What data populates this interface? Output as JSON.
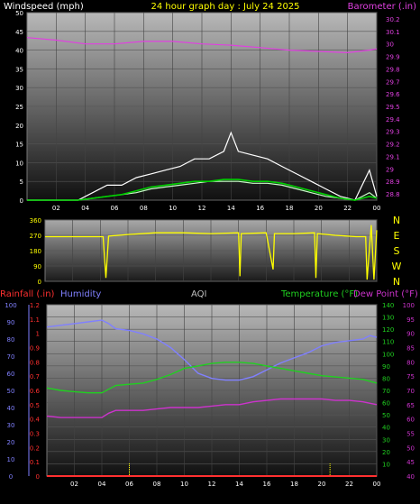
{
  "header": {
    "left_label": "Windspeed (mph)",
    "title": "24 hour graph day : July 24 2025",
    "right_label": "Barometer (.in)"
  },
  "bottom_header": {
    "rainfall_label": "Rainfall (.in)",
    "humidity_label": "Humidity",
    "aqi_label": "AQI",
    "temperature_label": "Temperature (°F)",
    "dewpoint_label": "Dew Point (°F)"
  },
  "colors": {
    "barometer": "#e040e0",
    "wind_gust": "#ffffff",
    "wind_avg": "#c8ffc8",
    "wind_mean": "#00d000",
    "direction": "#ffff00",
    "humidity": "#8080ff",
    "temperature": "#20d020",
    "dewpoint": "#cc33cc",
    "rainfall": "#ff3030",
    "aqi": "#c0c0c0",
    "title": "#ffff00",
    "left_label": "#ffffff"
  },
  "chart_data": [
    {
      "type": "line",
      "name": "wind-and-barometer",
      "x_ticks": [
        "02",
        "04",
        "06",
        "08",
        "10",
        "12",
        "14",
        "16",
        "18",
        "20",
        "22",
        "00"
      ],
      "y_ticks_left": [
        "0",
        "5",
        "10",
        "15",
        "20",
        "25",
        "30",
        "35",
        "40",
        "45",
        "50"
      ],
      "y_ticks_right": [
        "28.8",
        "28.9",
        "29",
        "29.1",
        "29.2",
        "29.3",
        "29.4",
        "29.5",
        "29.6",
        "29.7",
        "29.8",
        "29.9",
        "30",
        "30.1",
        "30.2"
      ],
      "ylim_left": [
        0,
        50
      ],
      "ylim_right": [
        28.75,
        30.25
      ],
      "xlim": [
        0,
        24
      ],
      "series": [
        {
          "key": "barometer",
          "axis": "right",
          "x": [
            0,
            2,
            4,
            6,
            8,
            10,
            12,
            14,
            16,
            18,
            20,
            22,
            23.5,
            24
          ],
          "y": [
            30.05,
            30.03,
            30.0,
            30.0,
            30.02,
            30.02,
            30.0,
            29.99,
            29.97,
            29.95,
            29.94,
            29.93,
            29.95,
            29.96
          ]
        },
        {
          "key": "wind_gust",
          "axis": "left",
          "x": [
            0,
            3.5,
            4.5,
            5.5,
            6.5,
            7.5,
            8.5,
            9.5,
            10.5,
            11.5,
            12.5,
            13.5,
            14,
            14.5,
            15.5,
            16.5,
            17.5,
            18.5,
            19.5,
            20.5,
            21.5,
            22.5,
            23.5,
            24
          ],
          "y": [
            0,
            0,
            2,
            4,
            4,
            6,
            7,
            8,
            9,
            11,
            11,
            13,
            18,
            13,
            12,
            11,
            9,
            7,
            5,
            3,
            1,
            0,
            8,
            1
          ]
        },
        {
          "key": "wind_avg",
          "axis": "left",
          "x": [
            0,
            3.5,
            4.5,
            5.5,
            6.5,
            7.5,
            8.5,
            9.5,
            10.5,
            11.5,
            12.5,
            13.5,
            14.5,
            15.5,
            16.5,
            17.5,
            18.5,
            19.5,
            20.5,
            21.5,
            22.5,
            23.5,
            24
          ],
          "y": [
            0,
            0,
            0.5,
            1,
            1.5,
            2,
            3,
            3.5,
            4,
            4.5,
            5,
            5,
            5,
            4.5,
            4.5,
            4,
            3,
            2,
            1,
            0.5,
            0,
            2,
            0.5
          ]
        },
        {
          "key": "wind_mean",
          "axis": "left",
          "x": [
            0,
            3.5,
            4.5,
            5.5,
            6.5,
            7.5,
            8.5,
            9.5,
            10.5,
            11.5,
            12.5,
            13.5,
            14.5,
            15.5,
            16.5,
            17.5,
            18.5,
            19.5,
            20.5,
            21.5,
            22.5,
            23.5,
            24
          ],
          "y": [
            0,
            0,
            0.5,
            1,
            1.5,
            2.5,
            3.5,
            4,
            4.5,
            5,
            5,
            5.5,
            5.5,
            5,
            5,
            4.5,
            3.5,
            2.5,
            1.5,
            0.5,
            0,
            1,
            0.5
          ]
        }
      ]
    },
    {
      "type": "line",
      "name": "wind-direction",
      "y_ticks_left": [
        "0",
        "90",
        "180",
        "270",
        "360"
      ],
      "y_ticks_right": [
        "N",
        "W",
        "S",
        "E",
        "N"
      ],
      "ylim": [
        0,
        360
      ],
      "xlim": [
        0,
        24
      ],
      "series": [
        {
          "key": "direction",
          "x": [
            0,
            4.2,
            4.4,
            4.6,
            6,
            8,
            10,
            12,
            14,
            14.1,
            14.2,
            16,
            16.5,
            16.6,
            18,
            19.5,
            19.6,
            19.7,
            21,
            22.5,
            23.2,
            23.3,
            23.6,
            23.8,
            24
          ],
          "y": [
            262,
            262,
            20,
            265,
            275,
            285,
            285,
            280,
            285,
            30,
            280,
            285,
            70,
            280,
            280,
            285,
            20,
            280,
            270,
            262,
            262,
            10,
            330,
            10,
            300
          ]
        }
      ]
    },
    {
      "type": "line",
      "name": "rain-humidity-temperature",
      "y_ticks_rain": [
        "0",
        "0.1",
        "0.2",
        "0.3",
        "0.4",
        "0.5",
        "0.6",
        "0.7",
        "0.8",
        "0.9",
        "1",
        "1.1",
        "1.2"
      ],
      "y_ticks_humidity": [
        "0",
        "10",
        "20",
        "30",
        "40",
        "50",
        "60",
        "70",
        "80",
        "90",
        "100"
      ],
      "y_ticks_temp": [
        "0",
        "10",
        "20",
        "30",
        "40",
        "50",
        "60",
        "70",
        "80",
        "90",
        "100",
        "110",
        "120",
        "130",
        "140"
      ],
      "y_ticks_dew": [
        "40",
        "45",
        "50",
        "55",
        "60",
        "65",
        "70",
        "75",
        "80",
        "85",
        "90",
        "95",
        "100"
      ],
      "xlim": [
        0,
        24
      ],
      "series": [
        {
          "key": "humidity",
          "axis": "humidity",
          "x": [
            0,
            1,
            2,
            3,
            4,
            4.5,
            5,
            6,
            7,
            8,
            9,
            10,
            11,
            12,
            13,
            14,
            15,
            16,
            17,
            18,
            19,
            20,
            21,
            22,
            23,
            23.5,
            24
          ],
          "y": [
            87,
            88,
            89,
            90,
            91,
            89,
            86,
            85,
            83,
            80,
            75,
            68,
            60,
            57,
            56,
            56,
            58,
            62,
            66,
            69,
            72,
            76,
            78,
            79,
            80,
            82,
            81
          ]
        },
        {
          "key": "temperature",
          "axis": "temp",
          "x": [
            0,
            1,
            2,
            3,
            4,
            5,
            6,
            7,
            8,
            9,
            10,
            11,
            12,
            13,
            14,
            15,
            16,
            17,
            18,
            19,
            20,
            21,
            22,
            23,
            24
          ],
          "y": [
            72,
            70,
            69,
            68,
            68,
            74,
            75,
            76,
            79,
            83,
            88,
            90,
            92,
            93,
            93,
            92,
            90,
            88,
            86,
            84,
            82,
            81,
            80,
            79,
            76
          ]
        },
        {
          "key": "dewpoint",
          "axis": "dew",
          "x": [
            0,
            1,
            2,
            3,
            4,
            4.5,
            5,
            6,
            7,
            8,
            9,
            10,
            11,
            12,
            13,
            14,
            15,
            16,
            17,
            18,
            19,
            20,
            21,
            22,
            23,
            24
          ],
          "y": [
            61,
            60.5,
            60.5,
            60.5,
            60.5,
            62,
            63,
            63,
            63,
            63.5,
            64,
            64,
            64,
            64.5,
            65,
            65,
            66,
            66.5,
            67,
            67,
            67,
            67,
            66.5,
            66.5,
            66,
            65
          ]
        },
        {
          "key": "rainfall",
          "axis": "rain",
          "x": [
            0,
            24
          ],
          "y": [
            0,
            0
          ]
        }
      ],
      "aqi_markers_x": [
        6,
        20.6
      ]
    }
  ]
}
